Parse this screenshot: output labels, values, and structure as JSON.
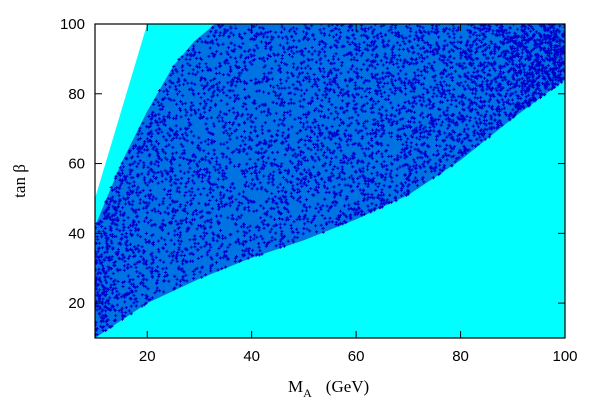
{
  "chart_data": {
    "type": "scatter",
    "title": "",
    "xlabel_main": "M",
    "xlabel_sub": "A",
    "xlabel_unit": "(GeV)",
    "ylabel": "tan β",
    "xlim": [
      10,
      100
    ],
    "ylim": [
      10,
      100
    ],
    "x_ticks": [
      20,
      40,
      60,
      80,
      100
    ],
    "y_ticks": [
      20,
      40,
      60,
      80,
      100
    ],
    "grid": false,
    "colors": {
      "allowed_region": "#00ffff",
      "selected_points": "#0000cc",
      "excluded_region": "#ffffff"
    },
    "series": [
      {
        "color_role": "allowed_region",
        "upper_boundary": [
          [
            10,
            50
          ],
          [
            14,
            70
          ],
          [
            18,
            90
          ],
          [
            20,
            100
          ],
          [
            100,
            100
          ]
        ],
        "lower_boundary": [
          [
            10,
            10
          ],
          [
            100,
            10
          ]
        ]
      },
      {
        "color_role": "selected_points",
        "upper_boundary": [
          [
            10,
            42
          ],
          [
            15,
            60
          ],
          [
            20,
            75
          ],
          [
            25,
            88
          ],
          [
            29,
            95
          ],
          [
            33,
            100
          ],
          [
            100,
            100
          ]
        ],
        "lower_boundary": [
          [
            10,
            10
          ],
          [
            20,
            20
          ],
          [
            30,
            27
          ],
          [
            40,
            33
          ],
          [
            50,
            38
          ],
          [
            60,
            44
          ],
          [
            70,
            51
          ],
          [
            80,
            61
          ],
          [
            90,
            73
          ],
          [
            100,
            84
          ]
        ]
      }
    ]
  }
}
